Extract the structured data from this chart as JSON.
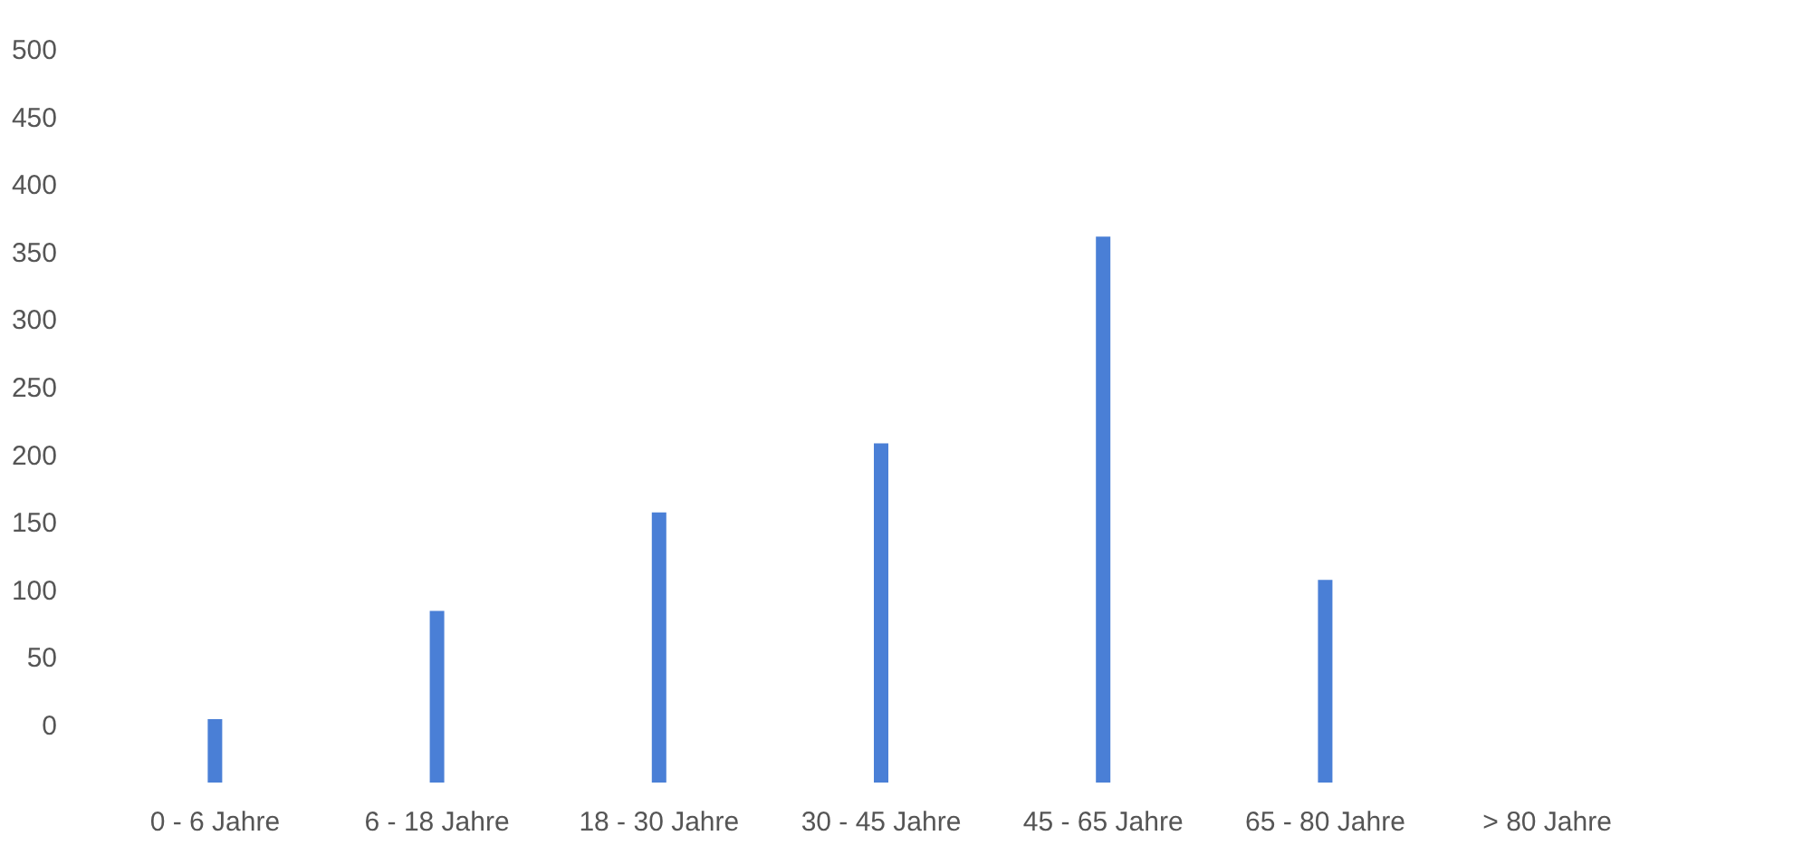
{
  "chart_data": {
    "type": "bar",
    "categories": [
      "0 - 6 Jahre",
      "6 - 18 Jahre",
      "18 - 30 Jahre",
      "30 - 45 Jahre",
      "45 - 65 Jahre",
      "65 - 80 Jahre",
      "> 80 Jahre"
    ],
    "values": [
      47,
      127,
      200,
      251,
      404,
      150,
      null
    ],
    "base": [
      -43,
      -43,
      -43,
      -43,
      -43,
      -43,
      null
    ],
    "color": "#4a7fd6",
    "ylim": [
      -43,
      500
    ],
    "yticks": [
      0,
      50,
      100,
      150,
      200,
      250,
      300,
      350,
      400,
      450,
      500
    ],
    "grid": false
  }
}
